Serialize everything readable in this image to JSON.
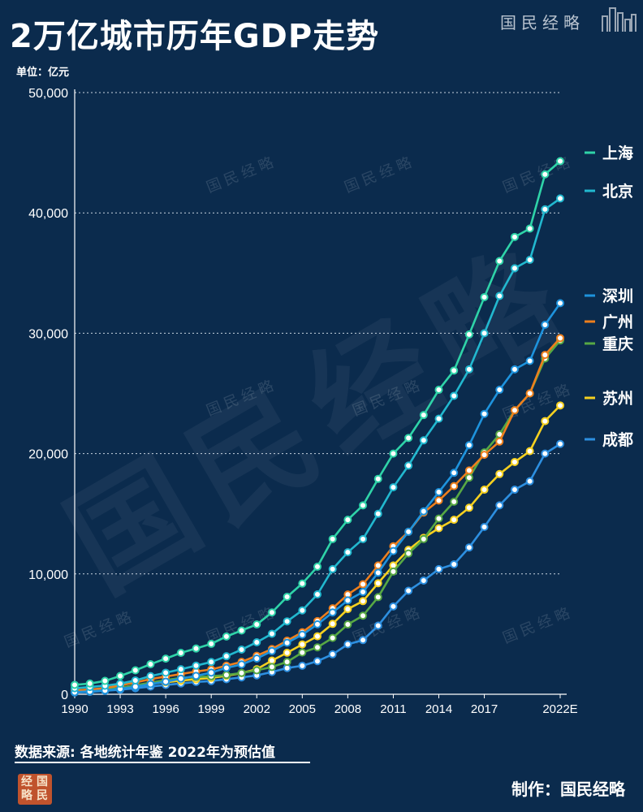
{
  "header": {
    "title": "2万亿城市历年GDP走势",
    "unit": "单位：亿元",
    "brand": "国民经略"
  },
  "footer": {
    "source": "数据来源: 各地统计年鉴  2022年为预估值",
    "maker": "制作：国民经略",
    "seal_chars": [
      "经",
      "国",
      "略",
      "民"
    ]
  },
  "watermark": {
    "text": "国民经略"
  },
  "colors": {
    "background": "#0b2b4d",
    "grid": "#c8d3df",
    "axis_text": "#ffffff",
    "marker_fill": "#ffffff"
  },
  "chart_data": {
    "type": "line",
    "title": "2万亿城市历年GDP走势",
    "ylabel": "单位：亿元",
    "ylim": [
      0,
      50000
    ],
    "yticks": [
      0,
      10000,
      20000,
      30000,
      40000,
      50000
    ],
    "ytick_labels": [
      "0",
      "10,000",
      "20,000",
      "30,000",
      "40,000",
      "50,000"
    ],
    "xlim": [
      1990,
      2022
    ],
    "xticks": [
      1990,
      1993,
      1996,
      1999,
      2002,
      2005,
      2008,
      2011,
      2014,
      2017,
      2022
    ],
    "xtick_labels": [
      "1990",
      "1993",
      "1996",
      "1999",
      "2002",
      "2005",
      "2008",
      "2011",
      "2014",
      "2017",
      "2022E"
    ],
    "grid": "horizontal dashed",
    "legend": "right, at line ends",
    "x": [
      1990,
      1991,
      1992,
      1993,
      1994,
      1995,
      1996,
      1997,
      1998,
      1999,
      2000,
      2001,
      2002,
      2003,
      2004,
      2005,
      2006,
      2007,
      2008,
      2009,
      2010,
      2011,
      2012,
      2013,
      2014,
      2015,
      2016,
      2017,
      2018,
      2019,
      2020,
      2021,
      2022
    ],
    "series": [
      {
        "name": "上海",
        "color": "#2fd3a8",
        "values": [
          780,
          890,
          1110,
          1520,
          1990,
          2500,
          2960,
          3440,
          3800,
          4190,
          4800,
          5300,
          5800,
          6800,
          8100,
          9200,
          10600,
          12900,
          14500,
          15700,
          17900,
          20000,
          21300,
          23200,
          25300,
          26900,
          29900,
          33000,
          36000,
          38000,
          38700,
          43200,
          44300
        ]
      },
      {
        "name": "北京",
        "color": "#22b8cf",
        "values": [
          500,
          600,
          710,
          880,
          1150,
          1510,
          1790,
          2080,
          2380,
          2680,
          3160,
          3710,
          4320,
          5030,
          6060,
          6970,
          8300,
          10400,
          11800,
          12900,
          15000,
          17200,
          19000,
          21100,
          22900,
          24800,
          27000,
          30000,
          33100,
          35400,
          36100,
          40300,
          41200
        ]
      },
      {
        "name": "深圳",
        "color": "#1e93dd",
        "values": [
          170,
          240,
          320,
          450,
          630,
          840,
          1050,
          1300,
          1530,
          1800,
          2190,
          2480,
          2970,
          3590,
          4280,
          4950,
          5810,
          6800,
          7800,
          8500,
          10100,
          11900,
          13500,
          15200,
          16800,
          18400,
          20700,
          23300,
          25300,
          27000,
          27700,
          30700,
          32500
        ]
      },
      {
        "name": "广州",
        "color": "#ee7f1d",
        "values": [
          320,
          390,
          510,
          740,
          980,
          1260,
          1470,
          1680,
          1890,
          2060,
          2380,
          2690,
          3200,
          3760,
          4450,
          5150,
          6080,
          7140,
          8290,
          9140,
          10700,
          12300,
          13500,
          15100,
          16100,
          17300,
          18600,
          19900,
          21000,
          23600,
          25000,
          28200,
          29600
        ]
      },
      {
        "name": "重庆",
        "color": "#57a844",
        "values": [
          330,
          380,
          430,
          540,
          740,
          970,
          1180,
          1360,
          1430,
          1490,
          1600,
          1770,
          1990,
          2270,
          2690,
          3470,
          3900,
          4680,
          5800,
          6530,
          8070,
          10200,
          11700,
          12900,
          14600,
          16000,
          18000,
          20100,
          21600,
          23600,
          25000,
          27900,
          29400
        ]
      },
      {
        "name": "苏州",
        "color": "#f5d020",
        "values": [
          200,
          250,
          360,
          530,
          740,
          900,
          1000,
          1130,
          1250,
          1360,
          1540,
          1760,
          2080,
          2800,
          3450,
          4140,
          4820,
          5850,
          7080,
          7740,
          9230,
          10700,
          12000,
          13000,
          13800,
          14500,
          15500,
          17000,
          18300,
          19300,
          20200,
          22700,
          24000
        ]
      },
      {
        "name": "成都",
        "color": "#2d8fe0",
        "values": [
          150,
          200,
          290,
          380,
          500,
          640,
          770,
          900,
          1020,
          1100,
          1250,
          1400,
          1570,
          1850,
          2180,
          2370,
          2750,
          3320,
          4150,
          4500,
          5700,
          7300,
          8600,
          9450,
          10400,
          10800,
          12200,
          13900,
          15700,
          17000,
          17700,
          20000,
          20800
        ]
      }
    ]
  }
}
